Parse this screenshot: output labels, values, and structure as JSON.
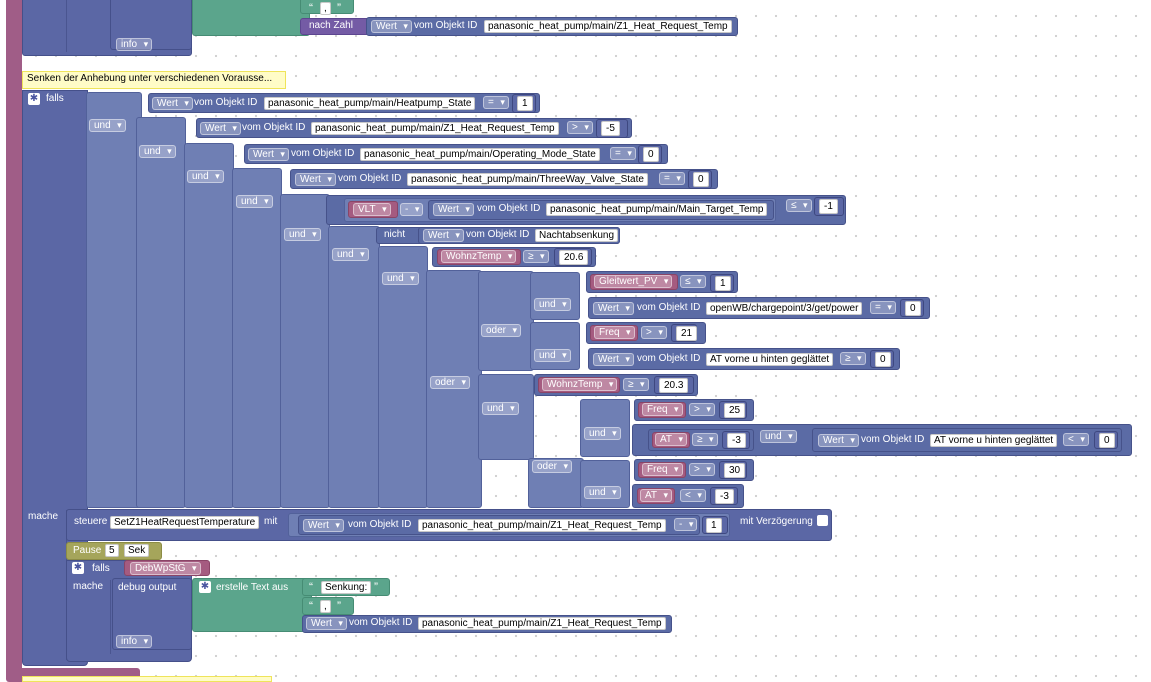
{
  "labels": {
    "und": "und",
    "oder": "oder",
    "nicht": "nicht",
    "falls": "falls",
    "mache": "mache",
    "wert": "Wert",
    "vom_objekt": "vom Objekt ID",
    "info": "info",
    "nach_zahl": "nach Zahl",
    "steuere": "steuere",
    "mit": "mit",
    "mit_verzoegerung": "mit Verzögerung",
    "pause": "Pause",
    "sek": "Sek",
    "debug_output": "debug output",
    "erstelle_text": "erstelle Text aus",
    "quote_open": "“",
    "quote_close": "”",
    "comma": ","
  },
  "comment_text": "Senken der Anhebung unter verschiedenen Vorausse...",
  "ids": {
    "heatpump_state": "panasonic_heat_pump/main/Heatpump_State",
    "z1_heat_request": "panasonic_heat_pump/main/Z1_Heat_Request_Temp",
    "operating_mode": "panasonic_heat_pump/main/Operating_Mode_State",
    "threeway_valve": "panasonic_heat_pump/main/ThreeWay_Valve_State",
    "main_target": "panasonic_heat_pump/main/Main_Target_Temp",
    "nachtabsenkung": "Nachtabsenkung",
    "openwb_power": "openWB/chargepoint/3/get/power",
    "at_geglaettet": "AT vorne u hinten geglättet"
  },
  "variables": {
    "vlt": "VLT",
    "wohnztemp": "WohnzTemp",
    "gleitwert": "Gleitwert_PV",
    "freq": "Freq",
    "at": "AT",
    "debwpstg": "DebWpStG",
    "setz1": "SetZ1HeatRequestTemperature"
  },
  "ops": {
    "eq": "=",
    "gt": ">",
    "ge": "≥",
    "le": "≤",
    "lt": "<",
    "minus": "-"
  },
  "numbers": {
    "n1": "1",
    "neg5": "-5",
    "n0": "0",
    "neg1": "-1",
    "n20_6": "20.6",
    "n21": "21",
    "n20_3": "20.3",
    "n25": "25",
    "neg3": "-3",
    "n30": "30",
    "n5": "5"
  },
  "texts": {
    "senkung": "Senkung:",
    "comma": ","
  },
  "colors": {
    "logic": "#5b6ba5",
    "variable": "#a55b80",
    "text": "#5ba58c",
    "timer": "#a5a55b",
    "outer": "#a05d87"
  }
}
